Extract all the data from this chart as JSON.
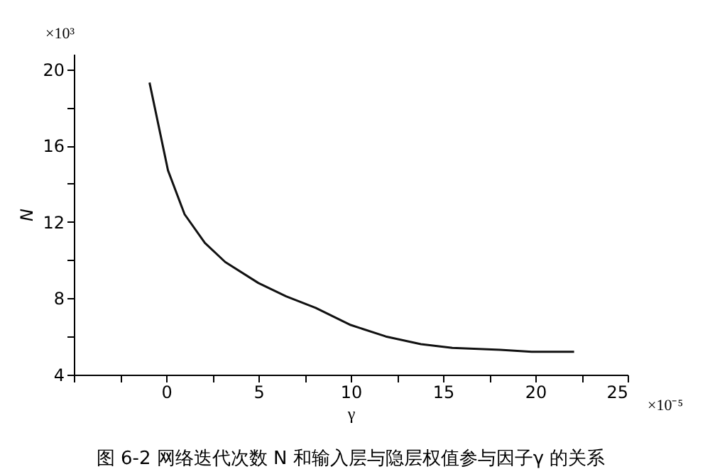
{
  "chart_data": {
    "type": "line",
    "title": "图 6-2 网络迭代次数 N 和输入层与隐层权值参与因子γ 的关系",
    "xlabel": "γ",
    "ylabel": "N",
    "annotations": [
      "×10³",
      "×10⁻⁵"
    ],
    "series": [
      {
        "color": "#111111",
        "x": [
          -0.9,
          0.1,
          1.0,
          2.1,
          3.2,
          5.0,
          6.5,
          8.1,
          10.0,
          11.9,
          13.8,
          15.5,
          18.1,
          19.8,
          22.1
        ],
        "values": [
          19.3,
          14.7,
          12.4,
          10.9,
          9.9,
          8.8,
          8.1,
          7.5,
          6.6,
          6.0,
          5.6,
          5.4,
          5.3,
          5.2,
          5.2
        ]
      }
    ],
    "xlim": [
      -5,
      25
    ],
    "ylim": [
      4,
      20.8
    ],
    "xticks": [
      {
        "value": -5,
        "label": null
      },
      {
        "value": -2.5,
        "label": null
      },
      0,
      {
        "value": 2.5,
        "label": null
      },
      5,
      {
        "value": 7.5,
        "label": null
      },
      10,
      {
        "value": 12.5,
        "label": null
      },
      15,
      {
        "value": 17.5,
        "label": null
      },
      20,
      {
        "value": 22.5,
        "label": null
      },
      25
    ],
    "yticks": [
      4,
      {
        "value": 6,
        "label": null
      },
      8,
      {
        "value": 10,
        "label": null
      },
      12,
      {
        "value": 14,
        "label": null
      },
      16,
      {
        "value": 18,
        "label": null
      },
      20
    ],
    "grid": false,
    "marker": "none",
    "line_style": "solid"
  }
}
